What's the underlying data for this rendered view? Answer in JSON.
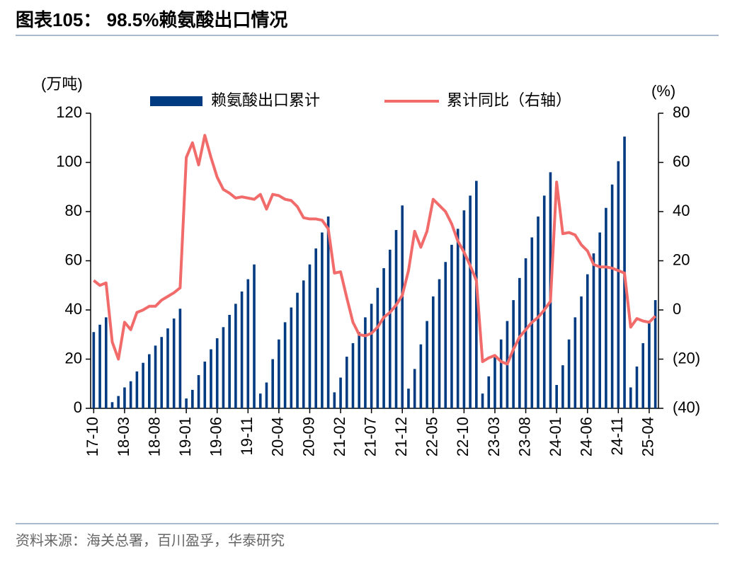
{
  "chart_data": {
    "type": "bar-line",
    "title": "图表105：  98.5%赖氨酸出口情况",
    "source": "资料来源：海关总署，百川盈孚，华泰研究",
    "y_label": "(万吨)",
    "y2_label": "(%)",
    "categories": [
      "17-10",
      null,
      null,
      null,
      null,
      "18-03",
      null,
      null,
      null,
      null,
      "18-08",
      null,
      null,
      null,
      null,
      "19-01",
      null,
      null,
      null,
      null,
      "19-06",
      null,
      null,
      null,
      null,
      "19-11",
      null,
      null,
      null,
      null,
      "20-04",
      null,
      null,
      null,
      null,
      "20-09",
      null,
      null,
      null,
      null,
      "21-02",
      null,
      null,
      null,
      null,
      "21-07",
      null,
      null,
      null,
      null,
      "21-12",
      null,
      null,
      null,
      null,
      "22-05",
      null,
      null,
      null,
      null,
      "22-10",
      null,
      null,
      null,
      null,
      "23-03",
      null,
      null,
      null,
      null,
      "23-08",
      null,
      null,
      null,
      null,
      "24-01",
      null,
      null,
      null,
      null,
      "24-06",
      null,
      null,
      null,
      null,
      "24-11",
      null,
      null,
      null,
      null,
      "25-04",
      null
    ],
    "series": [
      {
        "name": "赖氨酸出口累计",
        "color": "#003a80",
        "type": "bar",
        "values": [
          31,
          34,
          37,
          2.5,
          5,
          8.5,
          11,
          15,
          18.5,
          22,
          25.5,
          29,
          32.5,
          36.5,
          40.5,
          4,
          7.5,
          13.5,
          19,
          24,
          28.5,
          33,
          38,
          42.5,
          47.5,
          52.5,
          58.5,
          6,
          10.5,
          20,
          28,
          35,
          41,
          47,
          52,
          58.5,
          65,
          71.5,
          78,
          6.5,
          12.5,
          21,
          26.5,
          31,
          37,
          42.5,
          49,
          57,
          64.5,
          72.5,
          82.5,
          8,
          16,
          26,
          35.5,
          45.5,
          52.5,
          59.5,
          66.5,
          73,
          80.5,
          86.5,
          92.5,
          6,
          13,
          21,
          28,
          35.5,
          44,
          53,
          61,
          69.5,
          78,
          86.5,
          96,
          9.5,
          17.5,
          28,
          37,
          45.5,
          54.5,
          63,
          71.5,
          81.5,
          91,
          100.5,
          110.5,
          8.5,
          17,
          26.5,
          35.5,
          44
        ]
      },
      {
        "name": "累计同比（右轴）",
        "color": "#f26b6b",
        "type": "line",
        "axis": "y2",
        "values": [
          12,
          10,
          11,
          -13,
          -20,
          -5,
          -8,
          -1,
          0,
          1.5,
          1.5,
          4,
          5.5,
          7,
          9,
          62,
          68,
          59,
          71,
          62,
          54,
          49,
          47.5,
          45.5,
          46,
          45.5,
          45,
          47,
          41,
          47,
          46.5,
          45,
          44.5,
          42,
          37.5,
          37,
          37,
          36.5,
          33,
          15,
          15.5,
          5,
          -5,
          -10,
          -10.5,
          -9.5,
          -7,
          -3,
          -1,
          2,
          6,
          16,
          32,
          25.5,
          32,
          45,
          42.5,
          40,
          35,
          28,
          23.5,
          18,
          12,
          -21,
          -19.5,
          -18.5,
          -21,
          -22,
          -16,
          -11,
          -8,
          -5,
          -3,
          0,
          3.5,
          52,
          31,
          31.5,
          30.5,
          26.5,
          24,
          18.5,
          17.5,
          17.5,
          17,
          16,
          15,
          -7,
          -3.5,
          -4.5,
          -5,
          -2.5
        ]
      }
    ],
    "ylim": [
      0,
      120
    ],
    "yticks": [
      0,
      20,
      40,
      60,
      80,
      100,
      120
    ],
    "y2lim": [
      -40,
      80
    ],
    "y2ticks": [
      {
        "value": -40,
        "label": "(40)"
      },
      {
        "value": -20,
        "label": "(20)"
      },
      0,
      20,
      40,
      60,
      80
    ]
  }
}
